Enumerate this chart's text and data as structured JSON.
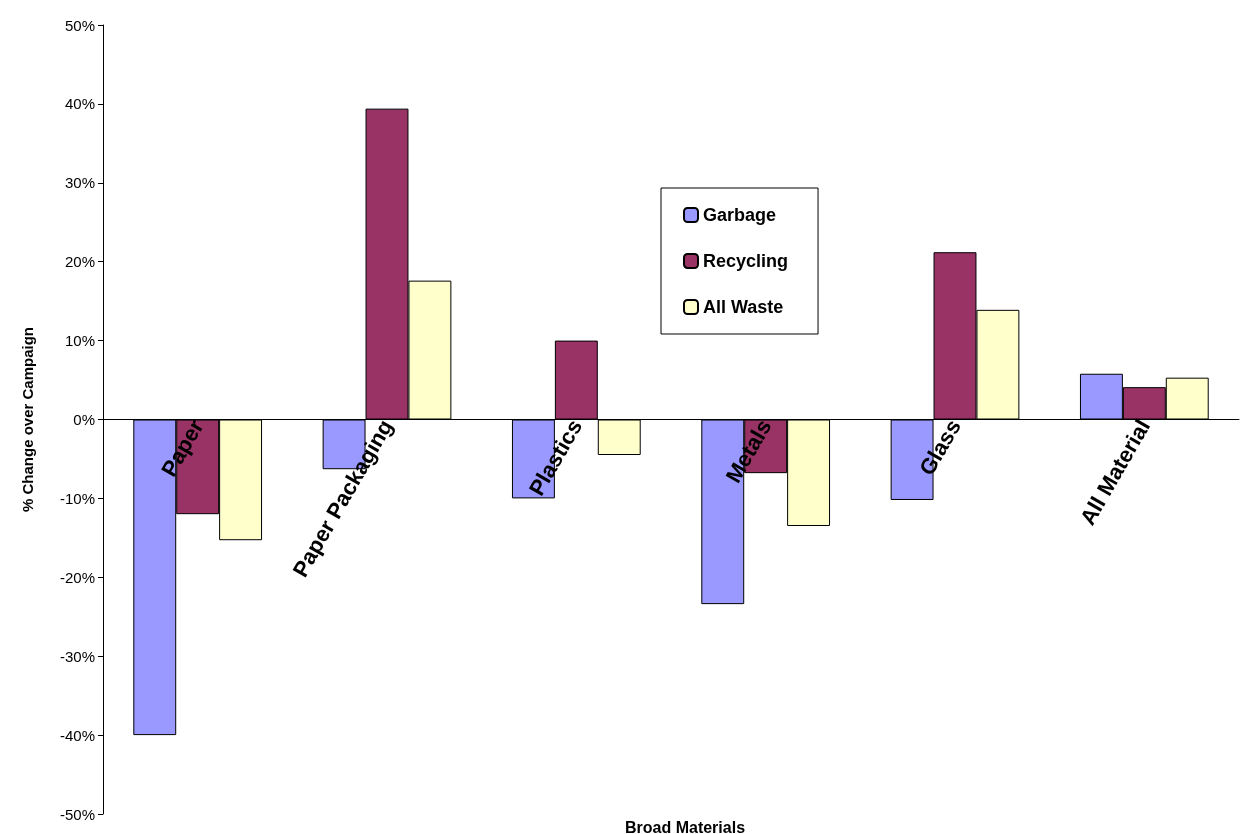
{
  "chart_data": {
    "type": "bar",
    "xlabel": "Broad Materials",
    "ylabel": "% Change over Campaign",
    "categories": [
      "Paper",
      "Paper Packaging",
      "Plastics",
      "Metals",
      "Glass",
      "All Material"
    ],
    "series": [
      {
        "name": "Garbage",
        "color": "#9999ff",
        "values": [
          -40,
          -6.3,
          -10,
          -23.4,
          -10.2,
          5.8
        ]
      },
      {
        "name": "Recycling",
        "color": "#993366",
        "values": [
          -12,
          39.4,
          10,
          -6.8,
          21.2,
          4.1
        ]
      },
      {
        "name": "All Waste",
        "color": "#ffffcc",
        "values": [
          -15.3,
          17.6,
          -4.5,
          -13.5,
          13.9,
          5.3
        ]
      }
    ],
    "ylim": [
      -50,
      50
    ],
    "yticks": [
      {
        "value": -50,
        "label": "-50%"
      },
      {
        "value": -40,
        "label": "-40%"
      },
      {
        "value": -30,
        "label": "-30%"
      },
      {
        "value": -20,
        "label": "-20%"
      },
      {
        "value": -10,
        "label": "-10%"
      },
      {
        "value": 0,
        "label": "0%"
      },
      {
        "value": 10,
        "label": "10%"
      },
      {
        "value": 20,
        "label": "20%"
      },
      {
        "value": 30,
        "label": "30%"
      },
      {
        "value": 40,
        "label": "40%"
      },
      {
        "value": 50,
        "label": "50%"
      }
    ],
    "grid": false,
    "legend": "top"
  }
}
